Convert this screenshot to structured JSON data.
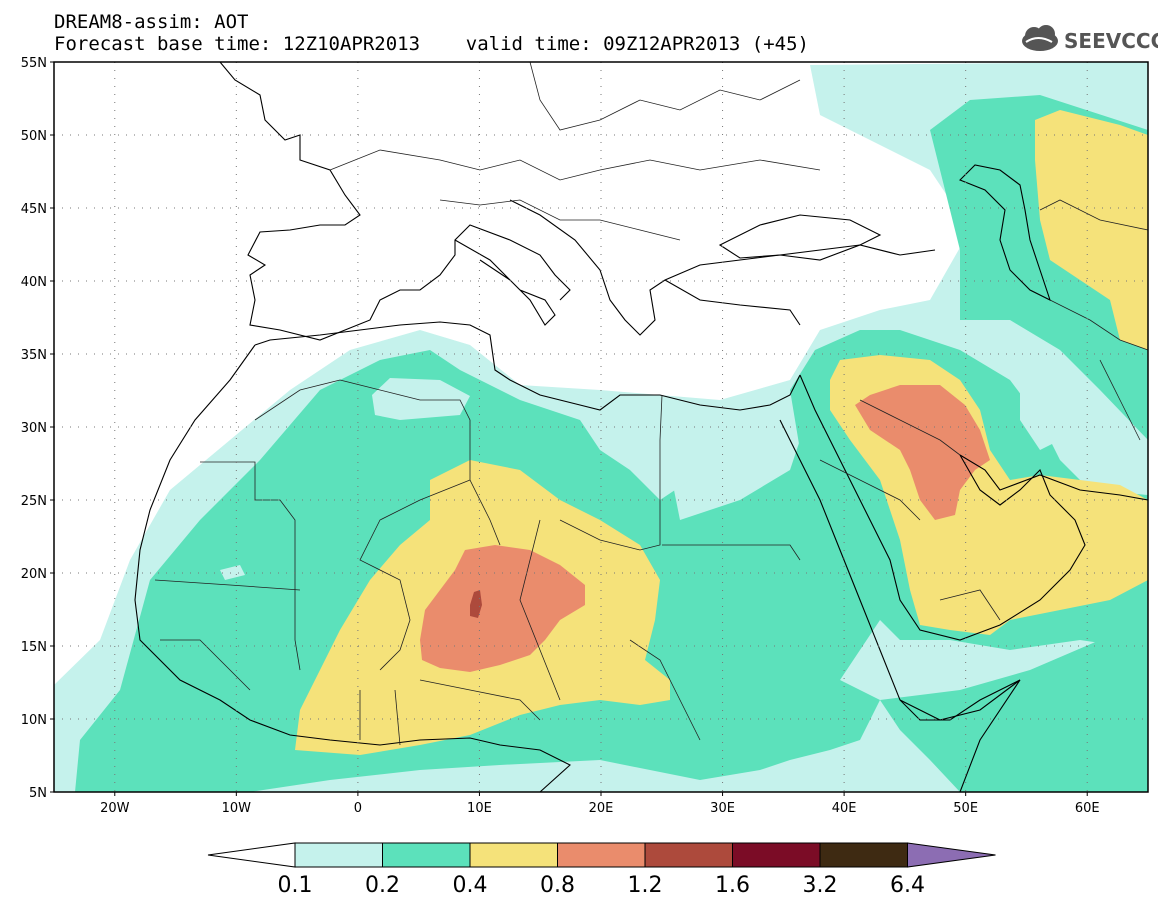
{
  "header": {
    "line1": "DREAM8-assim: AOT",
    "line2": "Forecast base time: 12Z10APR2013    valid time: 09Z12APR2013 (+45)",
    "logo_text": "SEEVCCC",
    "logo_icon": "cloud-icon"
  },
  "map": {
    "lat_labels": [
      "55N",
      "50N",
      "45N",
      "40N",
      "35N",
      "30N",
      "25N",
      "20N",
      "15N",
      "10N",
      "5N"
    ],
    "lon_labels": [
      "20W",
      "10W",
      "0",
      "10E",
      "20E",
      "30E",
      "40E",
      "50E",
      "60E"
    ],
    "lon_range": [
      -25,
      65
    ],
    "lat_range": [
      5,
      55
    ],
    "grid": "dotted"
  },
  "colorbar": {
    "labels": [
      "0.1",
      "0.2",
      "0.4",
      "0.8",
      "1.2",
      "1.6",
      "3.2",
      "6.4"
    ],
    "colors": [
      "#ffffff",
      "#c5f2ec",
      "#5ce1bb",
      "#f5e27a",
      "#ea8c6c",
      "#ad4a3c",
      "#7b0c26",
      "#3e2a12",
      "#8c6db3"
    ]
  }
}
